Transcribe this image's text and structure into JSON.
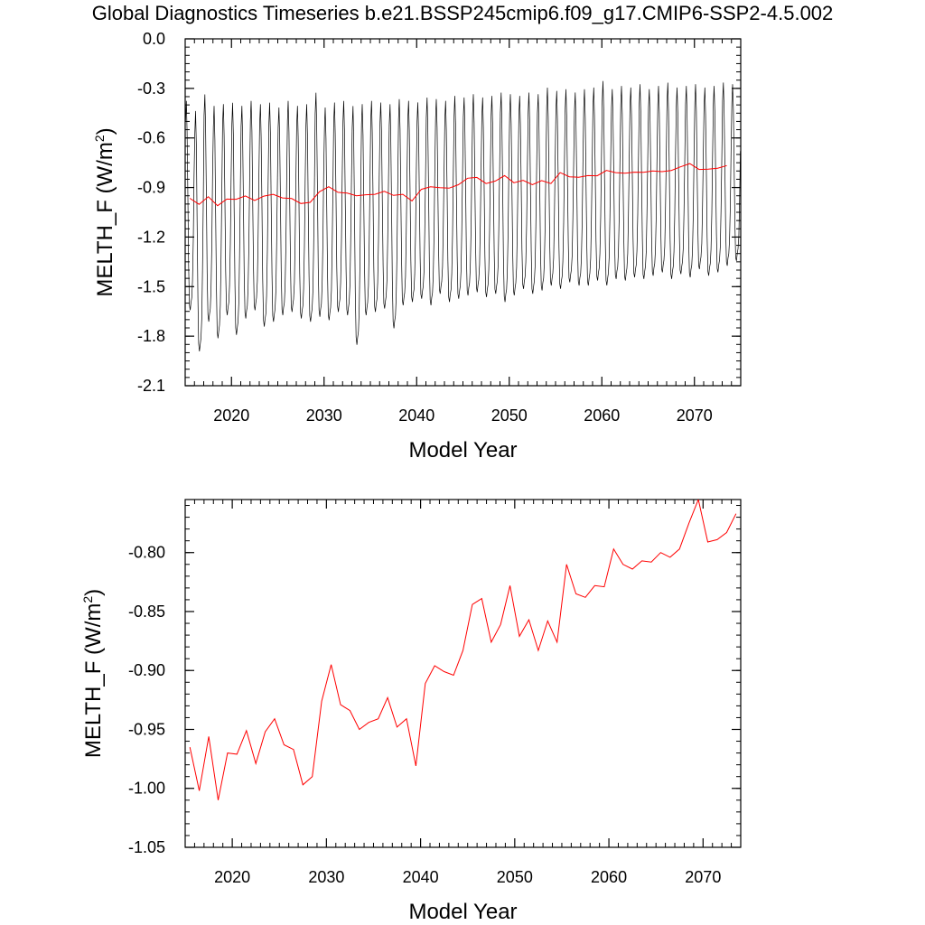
{
  "title": "Global Diagnostics Timeseries b.e21.BSSP245cmip6.f09_g17.CMIP6-SSP2-4.5.002",
  "colors": {
    "monthly": "#000000",
    "annual": "#ff0000",
    "axis": "#000000"
  },
  "chart_data": [
    {
      "type": "line",
      "ylabel_main": "MELTH_F (W/m",
      "ylabel_sup": "2",
      "ylabel_close": ")",
      "xlabel": "Model Year",
      "xlim": [
        2015,
        2075
      ],
      "ylim": [
        -2.1,
        0.0
      ],
      "xticks": [
        2020,
        2030,
        2040,
        2050,
        2060,
        2070
      ],
      "xtick_labels": [
        "2020",
        "2030",
        "2040",
        "2050",
        "2060",
        "2070"
      ],
      "yticks": [
        0.0,
        -0.3,
        -0.6,
        -0.9,
        -1.2,
        -1.5,
        -1.8,
        -2.1
      ],
      "ytick_labels": [
        "0.0",
        "-0.3",
        "-0.6",
        "-0.9",
        "-1.2",
        "-1.5",
        "-1.8",
        "-2.1"
      ],
      "monthly_series": {
        "description_years": [
          2015,
          2075
        ],
        "annual_peak": [
          -0.42,
          -0.48,
          -0.38,
          -0.45,
          -0.44,
          -0.43,
          -0.45,
          -0.42,
          -0.44,
          -0.43,
          -0.46,
          -0.42,
          -0.45,
          -0.44,
          -0.37,
          -0.46,
          -0.43,
          -0.42,
          -0.45,
          -0.44,
          -0.42,
          -0.43,
          -0.44,
          -0.41,
          -0.42,
          -0.43,
          -0.4,
          -0.41,
          -0.42,
          -0.39,
          -0.4,
          -0.38,
          -0.4,
          -0.39,
          -0.37,
          -0.38,
          -0.39,
          -0.37,
          -0.38,
          -0.34,
          -0.36,
          -0.35,
          -0.37,
          -0.35,
          -0.34,
          -0.3,
          -0.35,
          -0.33,
          -0.34,
          -0.32,
          -0.35,
          -0.33,
          -0.31,
          -0.34,
          -0.33,
          -0.32,
          -0.34,
          -0.33,
          -0.31,
          -0.32
        ],
        "annual_trough": [
          -1.65,
          -1.9,
          -1.72,
          -1.82,
          -1.68,
          -1.8,
          -1.7,
          -1.65,
          -1.75,
          -1.72,
          -1.68,
          -1.66,
          -1.7,
          -1.72,
          -1.69,
          -1.71,
          -1.66,
          -1.68,
          -1.86,
          -1.68,
          -1.66,
          -1.64,
          -1.76,
          -1.62,
          -1.6,
          -1.58,
          -1.62,
          -1.55,
          -1.6,
          -1.58,
          -1.56,
          -1.54,
          -1.57,
          -1.55,
          -1.6,
          -1.56,
          -1.52,
          -1.55,
          -1.53,
          -1.5,
          -1.52,
          -1.48,
          -1.5,
          -1.5,
          -1.47,
          -1.5,
          -1.46,
          -1.47,
          -1.45,
          -1.46,
          -1.44,
          -1.42,
          -1.46,
          -1.43,
          -1.45,
          -1.4,
          -1.44,
          -1.42,
          -1.38,
          -1.35
        ]
      },
      "annual_series": {
        "x": [
          2015.5,
          2016.5,
          2017.5,
          2018.5,
          2019.5,
          2020.5,
          2021.5,
          2022.5,
          2023.5,
          2024.5,
          2025.5,
          2026.5,
          2027.5,
          2028.5,
          2029.5,
          2030.5,
          2031.5,
          2032.5,
          2033.5,
          2034.5,
          2035.5,
          2036.5,
          2037.5,
          2038.5,
          2039.5,
          2040.5,
          2041.5,
          2042.5,
          2043.5,
          2044.5,
          2045.5,
          2046.5,
          2047.5,
          2048.5,
          2049.5,
          2050.5,
          2051.5,
          2052.5,
          2053.5,
          2054.5,
          2055.5,
          2056.5,
          2057.5,
          2058.5,
          2059.5,
          2060.5,
          2061.5,
          2062.5,
          2063.5,
          2064.5,
          2065.5,
          2066.5,
          2067.5,
          2068.5,
          2069.5,
          2070.5,
          2071.5,
          2072.5,
          2073.5
        ],
        "y": [
          -0.965,
          -1.002,
          -0.956,
          -1.01,
          -0.97,
          -0.971,
          -0.951,
          -0.979,
          -0.952,
          -0.941,
          -0.963,
          -0.967,
          -0.997,
          -0.99,
          -0.926,
          -0.895,
          -0.929,
          -0.934,
          -0.95,
          -0.944,
          -0.941,
          -0.923,
          -0.948,
          -0.941,
          -0.981,
          -0.911,
          -0.896,
          -0.901,
          -0.904,
          -0.883,
          -0.844,
          -0.839,
          -0.876,
          -0.861,
          -0.828,
          -0.871,
          -0.857,
          -0.883,
          -0.858,
          -0.876,
          -0.81,
          -0.835,
          -0.838,
          -0.828,
          -0.829,
          -0.797,
          -0.81,
          -0.814,
          -0.807,
          -0.808,
          -0.8,
          -0.804,
          -0.797,
          -0.775,
          -0.755,
          -0.791,
          -0.789,
          -0.783,
          -0.767
        ]
      }
    },
    {
      "type": "line",
      "ylabel_main": "MELTH_F (W/m",
      "ylabel_sup": "2",
      "ylabel_close": ")",
      "xlabel": "Model Year",
      "xlim": [
        2015,
        2074
      ],
      "ylim": [
        -1.05,
        -0.755
      ],
      "xticks": [
        2020,
        2030,
        2040,
        2050,
        2060,
        2070
      ],
      "xtick_labels": [
        "2020",
        "2030",
        "2040",
        "2050",
        "2060",
        "2070"
      ],
      "yticks": [
        -0.8,
        -0.85,
        -0.9,
        -0.95,
        -1.0,
        -1.05
      ],
      "ytick_labels": [
        "-0.80",
        "-0.85",
        "-0.90",
        "-0.95",
        "-1.00",
        "-1.05"
      ],
      "series": [
        {
          "x": [
            2015.5,
            2016.5,
            2017.5,
            2018.5,
            2019.5,
            2020.5,
            2021.5,
            2022.5,
            2023.5,
            2024.5,
            2025.5,
            2026.5,
            2027.5,
            2028.5,
            2029.5,
            2030.5,
            2031.5,
            2032.5,
            2033.5,
            2034.5,
            2035.5,
            2036.5,
            2037.5,
            2038.5,
            2039.5,
            2040.5,
            2041.5,
            2042.5,
            2043.5,
            2044.5,
            2045.5,
            2046.5,
            2047.5,
            2048.5,
            2049.5,
            2050.5,
            2051.5,
            2052.5,
            2053.5,
            2054.5,
            2055.5,
            2056.5,
            2057.5,
            2058.5,
            2059.5,
            2060.5,
            2061.5,
            2062.5,
            2063.5,
            2064.5,
            2065.5,
            2066.5,
            2067.5,
            2068.5,
            2069.5,
            2070.5,
            2071.5,
            2072.5,
            2073.5
          ],
          "y": [
            -0.965,
            -1.002,
            -0.956,
            -1.01,
            -0.97,
            -0.971,
            -0.951,
            -0.979,
            -0.952,
            -0.941,
            -0.963,
            -0.967,
            -0.997,
            -0.99,
            -0.926,
            -0.895,
            -0.929,
            -0.934,
            -0.95,
            -0.944,
            -0.941,
            -0.923,
            -0.948,
            -0.941,
            -0.981,
            -0.911,
            -0.896,
            -0.901,
            -0.904,
            -0.883,
            -0.844,
            -0.839,
            -0.876,
            -0.861,
            -0.828,
            -0.871,
            -0.857,
            -0.883,
            -0.858,
            -0.876,
            -0.81,
            -0.835,
            -0.838,
            -0.828,
            -0.829,
            -0.797,
            -0.81,
            -0.814,
            -0.807,
            -0.808,
            -0.8,
            -0.804,
            -0.797,
            -0.775,
            -0.755,
            -0.791,
            -0.789,
            -0.783,
            -0.767
          ]
        }
      ]
    }
  ]
}
